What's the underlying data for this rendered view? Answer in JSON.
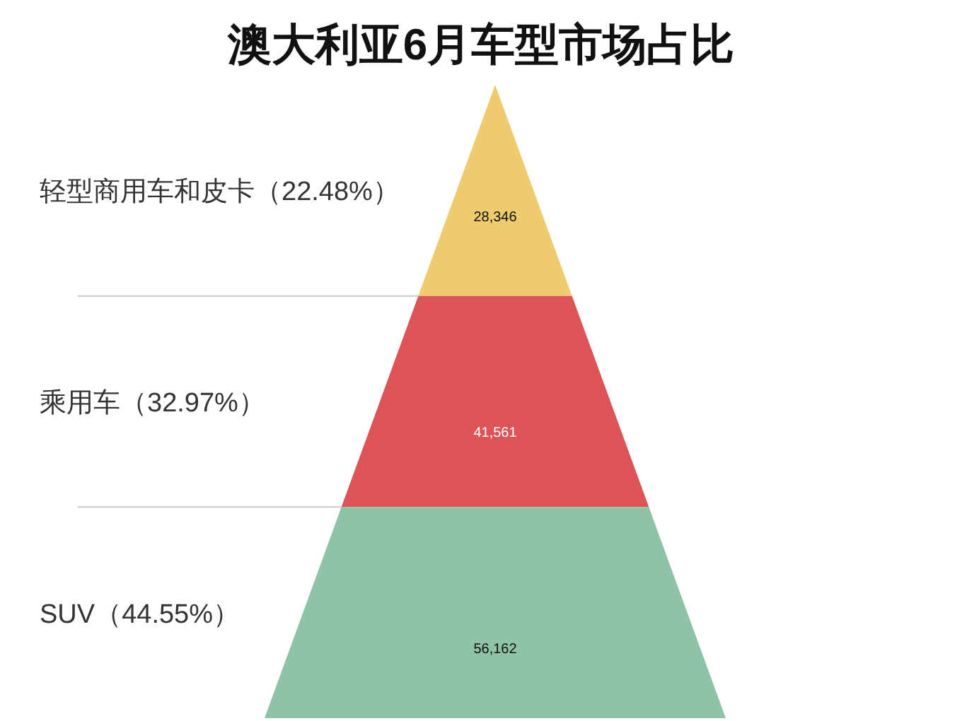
{
  "chart_data": {
    "type": "other",
    "title": "澳大利亚6月车型市场占比",
    "categories": [
      "轻型商用车和皮卡（22.48%）",
      "乘用车（32.97%）",
      "SUV（44.55%）"
    ],
    "values": [
      28346,
      41561,
      56162
    ],
    "value_labels": [
      "28,346",
      "41,561",
      "56,162"
    ],
    "colors": [
      "#eecb6c",
      "#dc5456",
      "#8fc3a7"
    ]
  }
}
